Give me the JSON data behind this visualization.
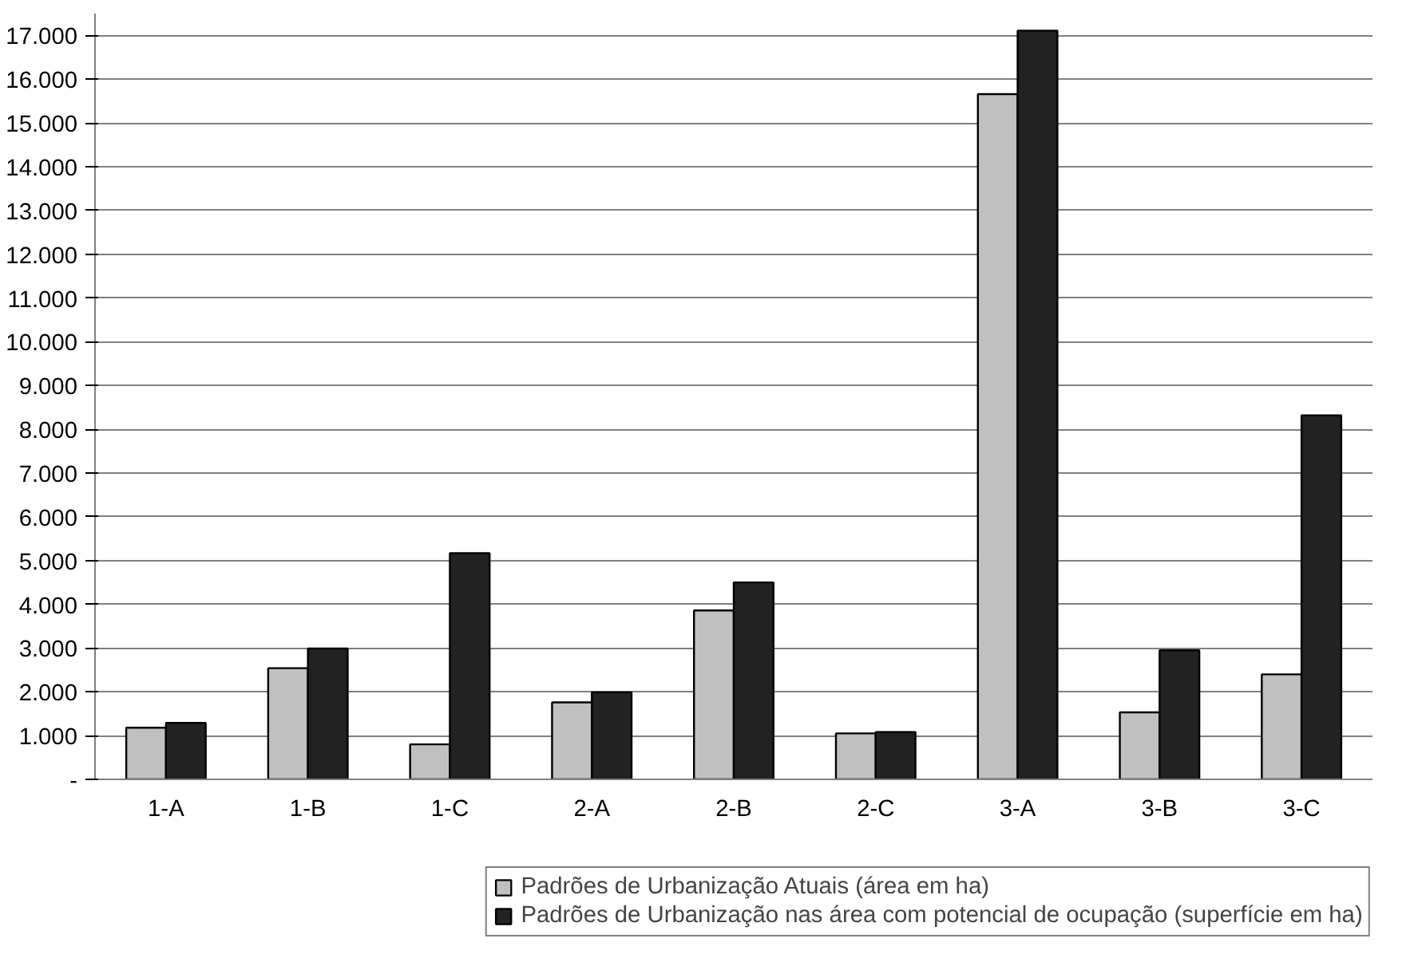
{
  "chart_data": {
    "type": "bar",
    "categories": [
      "1-A",
      "1-B",
      "1-C",
      "2-A",
      "2-B",
      "2-C",
      "3-A",
      "3-B",
      "3-C"
    ],
    "series": [
      {
        "name": "Padrões de Urbanização Atuais (área em ha)",
        "color": "#c0c0c0",
        "values": [
          1180,
          2540,
          800,
          1760,
          3860,
          1050,
          15660,
          1530,
          2400
        ]
      },
      {
        "name": "Padrões de Urbanização nas área com potencial de ocupação (superfície em ha)",
        "color": "#222222",
        "values": [
          1290,
          2990,
          5170,
          1990,
          4500,
          1080,
          17110,
          2950,
          8320
        ]
      }
    ],
    "ylim": [
      0,
      17500
    ],
    "yticks": [
      {
        "value": 0,
        "label": "-"
      },
      {
        "value": 1000,
        "label": "1.000"
      },
      {
        "value": 2000,
        "label": "2.000"
      },
      {
        "value": 3000,
        "label": "3.000"
      },
      {
        "value": 4000,
        "label": "4.000"
      },
      {
        "value": 5000,
        "label": "5.000"
      },
      {
        "value": 6000,
        "label": "6.000"
      },
      {
        "value": 7000,
        "label": "7.000"
      },
      {
        "value": 8000,
        "label": "8.000"
      },
      {
        "value": 9000,
        "label": "9.000"
      },
      {
        "value": 10000,
        "label": "10.000"
      },
      {
        "value": 11000,
        "label": "11.000"
      },
      {
        "value": 12000,
        "label": "12.000"
      },
      {
        "value": 13000,
        "label": "13.000"
      },
      {
        "value": 14000,
        "label": "14.000"
      },
      {
        "value": 15000,
        "label": "15.000"
      },
      {
        "value": 16000,
        "label": "16.000"
      },
      {
        "value": 17000,
        "label": "17.000"
      }
    ],
    "grid": "y",
    "legend": "bottom"
  }
}
